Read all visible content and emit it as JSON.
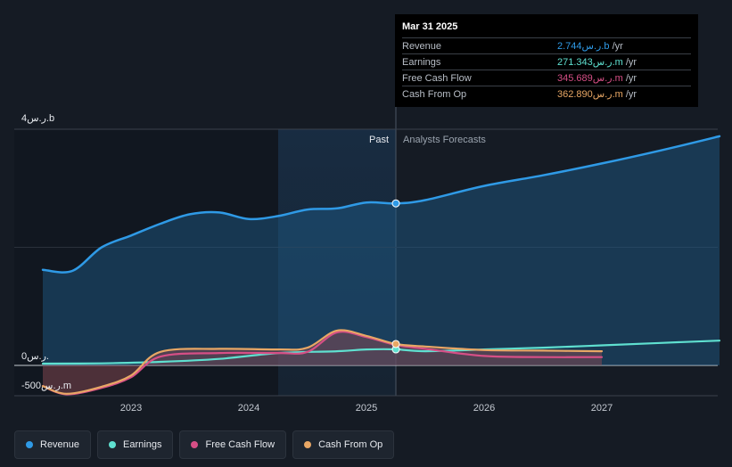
{
  "colors": {
    "background": "#151b24",
    "revenue": "#2f9ae6",
    "earnings": "#5fe0d0",
    "free_cash_flow": "#d64f86",
    "cash_from_op": "#e8a765"
  },
  "tooltip": {
    "date": "Mar 31 2025",
    "rows": [
      {
        "name": "Revenue",
        "value": "2.744ر.س.b",
        "unit": "/yr",
        "color": "#2f9ae6"
      },
      {
        "name": "Earnings",
        "value": "271.343ر.س.m",
        "unit": "/yr",
        "color": "#5fe0d0"
      },
      {
        "name": "Free Cash Flow",
        "value": "345.689ر.س.m",
        "unit": "/yr",
        "color": "#d64f86"
      },
      {
        "name": "Cash From Op",
        "value": "362.890ر.س.m",
        "unit": "/yr",
        "color": "#e8a765"
      }
    ]
  },
  "legend": [
    {
      "label": "Revenue",
      "color": "#2f9ae6"
    },
    {
      "label": "Earnings",
      "color": "#5fe0d0"
    },
    {
      "label": "Free Cash Flow",
      "color": "#d64f86"
    },
    {
      "label": "Cash From Op",
      "color": "#e8a765"
    }
  ],
  "chart_data": {
    "type": "line",
    "y_unit": "SAR millions",
    "ylim": [
      -500,
      4000
    ],
    "xlim": [
      2022.1,
      2028.0
    ],
    "past_end": 2025.25,
    "highlight_start": 2024.25,
    "y_axis_labels": [
      {
        "value": 4000,
        "text": "4ر.س.b"
      },
      {
        "value": 0,
        "text": "0ر.س."
      },
      {
        "value": -500,
        "text": "-500ر.س.m"
      }
    ],
    "x_ticks": [
      {
        "value": 2023,
        "text": "2023"
      },
      {
        "value": 2024,
        "text": "2024"
      },
      {
        "value": 2025,
        "text": "2025"
      },
      {
        "value": 2026,
        "text": "2026"
      },
      {
        "value": 2027,
        "text": "2027"
      }
    ],
    "region_labels": {
      "past": "Past",
      "forecast": "Analysts Forecasts"
    },
    "series": [
      {
        "name": "Revenue",
        "color": "#2f9ae6",
        "area": true,
        "points": [
          [
            2022.25,
            1620
          ],
          [
            2022.5,
            1600
          ],
          [
            2022.75,
            2000
          ],
          [
            2023.0,
            2200
          ],
          [
            2023.25,
            2400
          ],
          [
            2023.5,
            2560
          ],
          [
            2023.75,
            2590
          ],
          [
            2024.0,
            2480
          ],
          [
            2024.25,
            2530
          ],
          [
            2024.5,
            2640
          ],
          [
            2024.75,
            2660
          ],
          [
            2025.0,
            2760
          ],
          [
            2025.25,
            2744
          ],
          [
            2025.5,
            2800
          ],
          [
            2026.0,
            3040
          ],
          [
            2026.5,
            3220
          ],
          [
            2027.0,
            3420
          ],
          [
            2027.5,
            3640
          ],
          [
            2028.0,
            3880
          ]
        ]
      },
      {
        "name": "Earnings",
        "color": "#5fe0d0",
        "area": false,
        "points": [
          [
            2022.25,
            30
          ],
          [
            2022.75,
            35
          ],
          [
            2023.25,
            60
          ],
          [
            2023.75,
            110
          ],
          [
            2024.25,
            210
          ],
          [
            2024.75,
            240
          ],
          [
            2025.0,
            270
          ],
          [
            2025.25,
            271
          ],
          [
            2025.5,
            240
          ],
          [
            2026.0,
            270
          ],
          [
            2026.5,
            300
          ],
          [
            2027.0,
            340
          ],
          [
            2027.5,
            380
          ],
          [
            2028.0,
            420
          ]
        ]
      },
      {
        "name": "Free Cash Flow",
        "color": "#d64f86",
        "area": false,
        "points": [
          [
            2022.25,
            -350
          ],
          [
            2022.45,
            -490
          ],
          [
            2022.75,
            -380
          ],
          [
            2023.0,
            -200
          ],
          [
            2023.25,
            150
          ],
          [
            2023.75,
            210
          ],
          [
            2024.25,
            210
          ],
          [
            2024.5,
            230
          ],
          [
            2024.75,
            560
          ],
          [
            2025.0,
            480
          ],
          [
            2025.25,
            346
          ],
          [
            2025.5,
            280
          ],
          [
            2026.0,
            160
          ],
          [
            2026.5,
            140
          ],
          [
            2027.0,
            140
          ]
        ]
      },
      {
        "name": "Cash From Op",
        "color": "#e8a765",
        "area": true,
        "points": [
          [
            2022.25,
            -350
          ],
          [
            2022.45,
            -480
          ],
          [
            2022.75,
            -360
          ],
          [
            2023.0,
            -170
          ],
          [
            2023.25,
            230
          ],
          [
            2023.75,
            280
          ],
          [
            2024.25,
            270
          ],
          [
            2024.5,
            300
          ],
          [
            2024.75,
            590
          ],
          [
            2025.0,
            500
          ],
          [
            2025.25,
            363
          ],
          [
            2025.5,
            320
          ],
          [
            2026.0,
            260
          ],
          [
            2026.5,
            250
          ],
          [
            2027.0,
            240
          ]
        ]
      }
    ],
    "markers": [
      {
        "series": "Revenue",
        "x": 2025.25,
        "y": 2744
      },
      {
        "series": "Earnings",
        "x": 2025.25,
        "y": 271
      },
      {
        "series": "Cash From Op",
        "x": 2025.25,
        "y": 363
      }
    ]
  }
}
